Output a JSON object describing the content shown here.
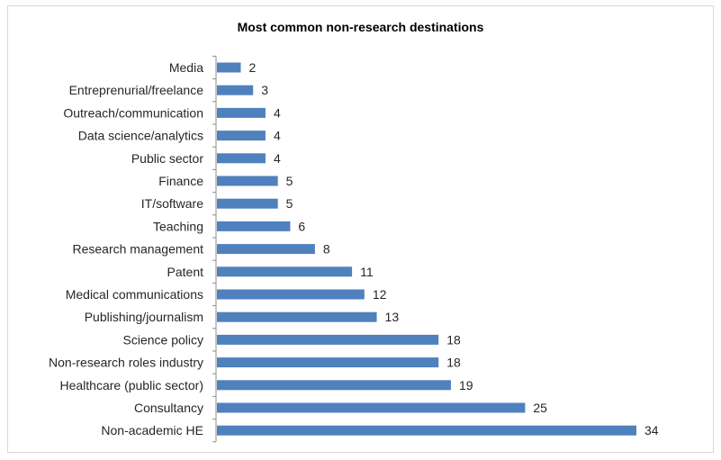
{
  "chart_data": {
    "type": "bar",
    "orientation": "horizontal",
    "title": "Most common non-research destinations",
    "categories": [
      "Media",
      "Entreprenurial/freelance",
      "Outreach/communication",
      "Data science/analytics",
      "Public sector",
      "Finance",
      "IT/software",
      "Teaching",
      "Research management",
      "Patent",
      "Medical communications",
      "Publishing/journalism",
      "Science policy",
      "Non-research roles industry",
      "Healthcare (public sector)",
      "Consultancy",
      "Non-academic HE"
    ],
    "values": [
      2,
      3,
      4,
      4,
      4,
      5,
      5,
      6,
      8,
      11,
      12,
      13,
      18,
      18,
      19,
      25,
      34
    ],
    "xlabel": "",
    "ylabel": "",
    "xlim": [
      0,
      34
    ],
    "grid": false,
    "legend": "none",
    "data_labels": true,
    "bar_color": "#4f81bd",
    "axis_color": "#8c8c8c"
  }
}
